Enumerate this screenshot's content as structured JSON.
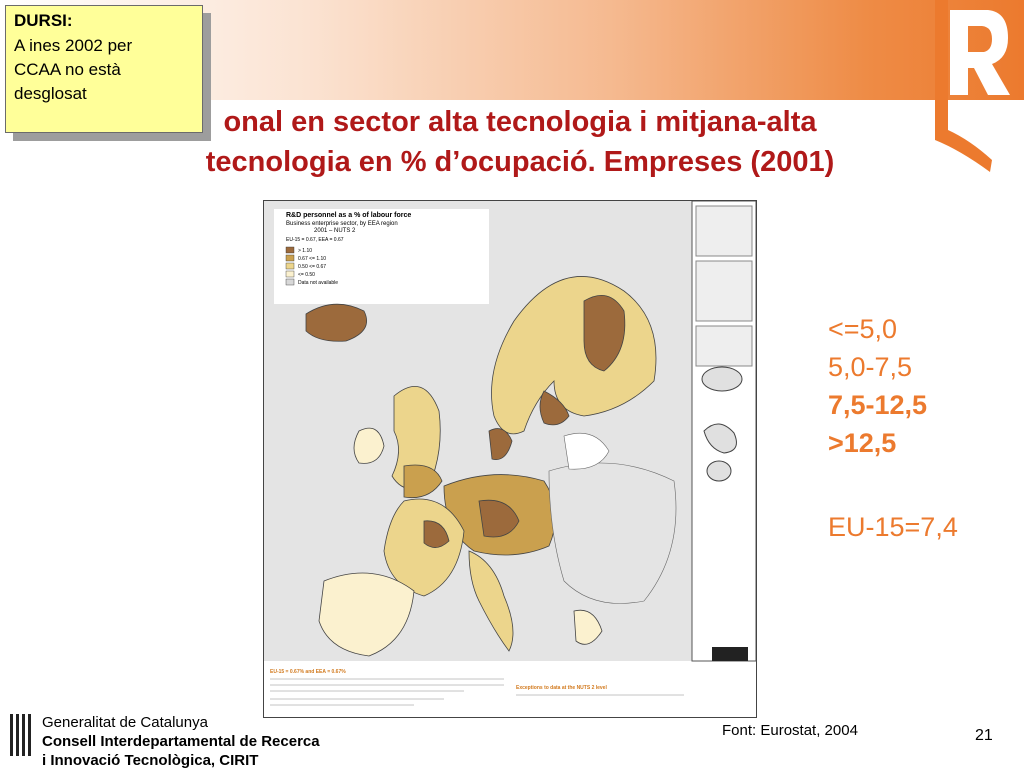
{
  "note": {
    "heading": "DURSI:",
    "line1": "A ines 2002 per",
    "line2": "CCAA no està",
    "line3": "desglosat"
  },
  "title": {
    "line1": "onal en sector alta tecnologia i mitjana-alta",
    "line2": "tecnologia en % d’ocupació. Empreses (2001)"
  },
  "map": {
    "legend_title": [
      "R&D personnel as a % of labour force",
      "Business enterprise sector, by EEA region",
      "2001 – NUTS 2"
    ],
    "legend_avg": "EU-15 = 0.67, EEA = 0.67",
    "legend_classes": [
      "> 1.10",
      "0.67 <= 1.10",
      "0.50 <= 0.67",
      "<= 0.50",
      "Data not available"
    ],
    "legend_colors": [
      "#9c6a3c",
      "#caa04e",
      "#ecd58c",
      "#fbf1cf",
      "#d8d8d8"
    ],
    "footer_left_title": "EU-15 = 0.67% and EEA = 0.67%",
    "footer_right_title": "Exceptions to data at the NUTS 2 level"
  },
  "legend_text": {
    "item1": "<=5,0",
    "item2": "5,0-7,5",
    "item3": "7,5-12,5",
    "item4": ">12,5",
    "eu": "EU-15=7,4"
  },
  "footer": {
    "inst1": "Generalitat de Catalunya",
    "inst2": "Consell Interdepartamental de Recerca",
    "inst3": "i Innovació Tecnològica, CIRIT",
    "source": "Font: Eurostat, 2004",
    "page": "21"
  },
  "colors": {
    "accent": "#ec7a2e",
    "title": "#b01919"
  }
}
